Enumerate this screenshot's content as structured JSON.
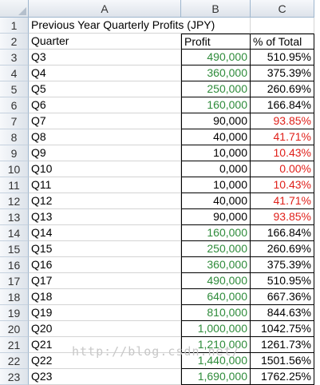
{
  "columns": [
    "A",
    "B",
    "C"
  ],
  "title": "Previous Year Quarterly Profits (JPY)",
  "headers": {
    "quarter": "Quarter",
    "profit": "Profit",
    "pct": "% of Total"
  },
  "rows": [
    {
      "n": "3",
      "q": "Q3",
      "profit": "490,000",
      "pct": "510.95%",
      "profit_color": "green",
      "pct_color": "black"
    },
    {
      "n": "4",
      "q": "Q4",
      "profit": "360,000",
      "pct": "375.39%",
      "profit_color": "green",
      "pct_color": "black"
    },
    {
      "n": "5",
      "q": "Q5",
      "profit": "250,000",
      "pct": "260.69%",
      "profit_color": "green",
      "pct_color": "black"
    },
    {
      "n": "6",
      "q": "Q6",
      "profit": "160,000",
      "pct": "166.84%",
      "profit_color": "green",
      "pct_color": "black"
    },
    {
      "n": "7",
      "q": "Q7",
      "profit": "90,000",
      "pct": "93.85%",
      "profit_color": "black",
      "pct_color": "red"
    },
    {
      "n": "8",
      "q": "Q8",
      "profit": "40,000",
      "pct": "41.71%",
      "profit_color": "black",
      "pct_color": "red"
    },
    {
      "n": "9",
      "q": "Q9",
      "profit": "10,000",
      "pct": "10.43%",
      "profit_color": "black",
      "pct_color": "red"
    },
    {
      "n": "10",
      "q": "Q10",
      "profit": "0,000",
      "pct": "0.00%",
      "profit_color": "black",
      "pct_color": "red"
    },
    {
      "n": "11",
      "q": "Q11",
      "profit": "10,000",
      "pct": "10.43%",
      "profit_color": "black",
      "pct_color": "red"
    },
    {
      "n": "12",
      "q": "Q12",
      "profit": "40,000",
      "pct": "41.71%",
      "profit_color": "black",
      "pct_color": "red"
    },
    {
      "n": "13",
      "q": "Q13",
      "profit": "90,000",
      "pct": "93.85%",
      "profit_color": "black",
      "pct_color": "red"
    },
    {
      "n": "14",
      "q": "Q14",
      "profit": "160,000",
      "pct": "166.84%",
      "profit_color": "green",
      "pct_color": "black"
    },
    {
      "n": "15",
      "q": "Q15",
      "profit": "250,000",
      "pct": "260.69%",
      "profit_color": "green",
      "pct_color": "black"
    },
    {
      "n": "16",
      "q": "Q16",
      "profit": "360,000",
      "pct": "375.39%",
      "profit_color": "green",
      "pct_color": "black"
    },
    {
      "n": "17",
      "q": "Q17",
      "profit": "490,000",
      "pct": "510.95%",
      "profit_color": "green",
      "pct_color": "black"
    },
    {
      "n": "18",
      "q": "Q18",
      "profit": "640,000",
      "pct": "667.36%",
      "profit_color": "green",
      "pct_color": "black"
    },
    {
      "n": "19",
      "q": "Q19",
      "profit": "810,000",
      "pct": "844.63%",
      "profit_color": "green",
      "pct_color": "black"
    },
    {
      "n": "20",
      "q": "Q20",
      "profit": "1,000,000",
      "pct": "1042.75%",
      "profit_color": "green",
      "pct_color": "black"
    },
    {
      "n": "21",
      "q": "Q21",
      "profit": "1,210,000",
      "pct": "1261.73%",
      "profit_color": "green",
      "pct_color": "black"
    },
    {
      "n": "22",
      "q": "Q22",
      "profit": "1,440,000",
      "pct": "1501.56%",
      "profit_color": "green",
      "pct_color": "black"
    },
    {
      "n": "23",
      "q": "Q23",
      "profit": "1,690,000",
      "pct": "1762.25%",
      "profit_color": "green",
      "pct_color": "black"
    }
  ],
  "watermark": "http://blog.csdn.net/"
}
